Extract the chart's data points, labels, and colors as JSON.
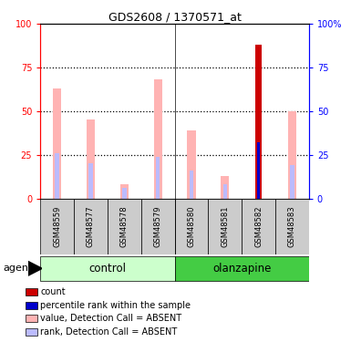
{
  "title": "GDS2608 / 1370571_at",
  "samples": [
    "GSM48559",
    "GSM48577",
    "GSM48578",
    "GSM48579",
    "GSM48580",
    "GSM48581",
    "GSM48582",
    "GSM48583"
  ],
  "value_absent": [
    63,
    45,
    8,
    68,
    39,
    13,
    0,
    50
  ],
  "rank_absent": [
    26,
    20,
    6,
    24,
    16,
    8,
    0,
    19
  ],
  "count": [
    0,
    0,
    0,
    0,
    0,
    0,
    88,
    0
  ],
  "percentile_rank": [
    0,
    0,
    0,
    0,
    0,
    0,
    32,
    0
  ],
  "ylim": [
    0,
    100
  ],
  "color_value_absent": "#FFB3B3",
  "color_rank_absent": "#BBBBFF",
  "color_count": "#CC0000",
  "color_percentile": "#0000CC",
  "color_control_bg_light": "#CCFFCC",
  "color_olanzapine_bg": "#44CC44",
  "color_sample_bg": "#CCCCCC",
  "yticks": [
    0,
    25,
    50,
    75,
    100
  ],
  "ytick_labels_left": [
    "0",
    "25",
    "50",
    "75",
    "100"
  ],
  "ytick_labels_right": [
    "0",
    "25",
    "50",
    "75",
    "100%"
  ],
  "legend_items": [
    {
      "color": "#CC0000",
      "label": "count"
    },
    {
      "color": "#0000CC",
      "label": "percentile rank within the sample"
    },
    {
      "color": "#FFB3B3",
      "label": "value, Detection Call = ABSENT"
    },
    {
      "color": "#BBBBFF",
      "label": "rank, Detection Call = ABSENT"
    }
  ]
}
